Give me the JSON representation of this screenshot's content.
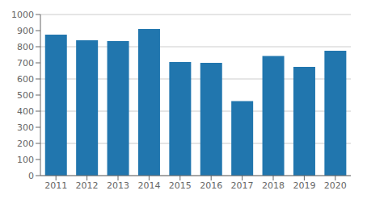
{
  "chart_data": {
    "type": "bar",
    "categories": [
      "2011",
      "2012",
      "2013",
      "2014",
      "2015",
      "2016",
      "2017",
      "2018",
      "2019",
      "2020"
    ],
    "values": [
      875,
      840,
      835,
      910,
      705,
      700,
      462,
      743,
      675,
      775
    ],
    "color": "#2176ae",
    "ylim": [
      0,
      1000
    ],
    "yticks": [
      0,
      100,
      200,
      300,
      400,
      500,
      600,
      700,
      800,
      900,
      1000
    ],
    "grid": true
  }
}
